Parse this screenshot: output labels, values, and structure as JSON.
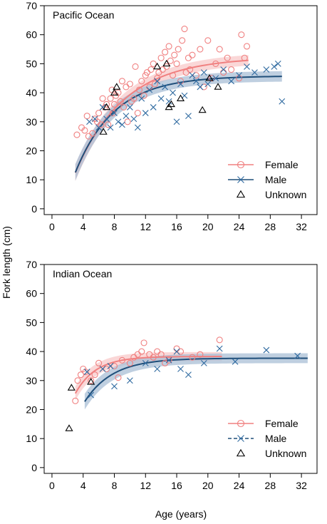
{
  "figure": {
    "ylabel_shared": "Fork length (cm)",
    "xlabel_shared": "Age (years)",
    "colors": {
      "female": "#f08080",
      "male": "#1f4e79",
      "male_marker": "#2f6aa0",
      "female_band": "#f8c9c9",
      "male_band": "#a9bfd6",
      "unknown": "#000000"
    }
  },
  "chart_data": [
    {
      "type": "scatter",
      "title": "Pacific Ocean",
      "xlabel": "",
      "ylabel": "Fork length (cm)",
      "xlim": [
        -1,
        34
      ],
      "ylim": [
        -2,
        70
      ],
      "xticks": [
        0,
        4,
        8,
        12,
        16,
        20,
        24,
        28,
        32
      ],
      "yticks": [
        0,
        10,
        20,
        30,
        40,
        50,
        60,
        70
      ],
      "grid": false,
      "legend_position": "bottom-right",
      "legend": [
        {
          "label": "Female",
          "marker": "circle",
          "line": "solid"
        },
        {
          "label": "Male",
          "marker": "x",
          "line": "solid"
        },
        {
          "label": "Unknown",
          "marker": "triangle",
          "line": "none"
        }
      ],
      "series": [
        {
          "name": "Female",
          "marker": "circle",
          "points": [
            [
              3.2,
              25.5
            ],
            [
              3.8,
              28
            ],
            [
              4.2,
              27
            ],
            [
              4.5,
              32
            ],
            [
              4.7,
              25
            ],
            [
              5.2,
              26
            ],
            [
              5.5,
              31
            ],
            [
              5.8,
              30
            ],
            [
              6,
              33
            ],
            [
              6.3,
              29
            ],
            [
              6.5,
              38
            ],
            [
              6.8,
              35
            ],
            [
              7,
              36
            ],
            [
              7.2,
              29
            ],
            [
              7.5,
              38
            ],
            [
              7.7,
              41
            ],
            [
              7.8,
              33
            ],
            [
              8,
              36
            ],
            [
              8.2,
              39
            ],
            [
              8.5,
              40
            ],
            [
              8.8,
              37
            ],
            [
              9,
              44
            ],
            [
              9.2,
              35
            ],
            [
              9.5,
              42
            ],
            [
              9.7,
              30
            ],
            [
              10,
              43
            ],
            [
              10.2,
              37
            ],
            [
              10.5,
              38
            ],
            [
              10.7,
              49
            ],
            [
              11,
              33
            ],
            [
              11.2,
              41
            ],
            [
              11.5,
              44
            ],
            [
              11.8,
              39
            ],
            [
              12,
              46
            ],
            [
              12.2,
              47
            ],
            [
              12.5,
              42
            ],
            [
              12.7,
              48
            ],
            [
              13,
              50
            ],
            [
              13.2,
              43
            ],
            [
              13.5,
              45
            ],
            [
              13.7,
              47
            ],
            [
              14,
              52
            ],
            [
              14.2,
              48
            ],
            [
              14.5,
              54
            ],
            [
              14.7,
              49
            ],
            [
              15,
              56
            ],
            [
              15.2,
              51
            ],
            [
              15.5,
              46
            ],
            [
              15.7,
              53
            ],
            [
              16,
              50
            ],
            [
              16.2,
              55
            ],
            [
              16.5,
              44
            ],
            [
              16.7,
              58
            ],
            [
              17,
              62
            ],
            [
              17.2,
              47
            ],
            [
              17.5,
              52
            ],
            [
              17.7,
              48
            ],
            [
              18,
              53
            ],
            [
              18.5,
              46
            ],
            [
              19,
              55
            ],
            [
              19.5,
              42
            ],
            [
              20,
              58
            ],
            [
              20.5,
              45
            ],
            [
              21,
              50
            ],
            [
              21.5,
              55
            ],
            [
              22,
              47
            ],
            [
              22.5,
              52
            ],
            [
              23,
              48
            ],
            [
              24,
              45
            ],
            [
              24.3,
              60
            ],
            [
              24.7,
              52
            ],
            [
              25,
              56
            ]
          ]
        },
        {
          "name": "Male",
          "marker": "x",
          "points": [
            [
              4.8,
              30
            ],
            [
              5.5,
              31
            ],
            [
              6,
              28
            ],
            [
              6.5,
              35
            ],
            [
              7,
              31
            ],
            [
              7.5,
              28
            ],
            [
              8,
              33
            ],
            [
              8.5,
              30
            ],
            [
              9,
              29
            ],
            [
              9.5,
              32
            ],
            [
              10,
              35
            ],
            [
              10.5,
              31
            ],
            [
              11,
              28
            ],
            [
              11.5,
              38
            ],
            [
              12,
              33
            ],
            [
              12.5,
              41
            ],
            [
              13,
              35
            ],
            [
              13.5,
              44
            ],
            [
              14,
              38
            ],
            [
              14.5,
              42
            ],
            [
              15,
              37
            ],
            [
              15.5,
              40
            ],
            [
              16,
              30
            ],
            [
              16.5,
              43
            ],
            [
              17,
              39
            ],
            [
              17.5,
              32
            ],
            [
              18,
              46
            ],
            [
              18.5,
              44
            ],
            [
              19,
              42
            ],
            [
              19.5,
              47
            ],
            [
              20,
              43
            ],
            [
              21,
              45
            ],
            [
              22,
              48
            ],
            [
              23,
              44
            ],
            [
              24,
              46
            ],
            [
              25,
              49
            ],
            [
              26,
              47
            ],
            [
              27.5,
              48
            ],
            [
              28.5,
              49
            ],
            [
              29,
              50
            ],
            [
              29.5,
              37
            ]
          ]
        },
        {
          "name": "Unknown",
          "marker": "triangle",
          "points": [
            [
              6.6,
              26.5
            ],
            [
              7,
              35
            ],
            [
              8,
              40
            ],
            [
              8.3,
              42
            ],
            [
              13.5,
              49
            ],
            [
              14.7,
              50
            ],
            [
              15,
              35
            ],
            [
              15.3,
              36
            ],
            [
              16.5,
              38
            ],
            [
              19.3,
              34
            ],
            [
              20.2,
              45
            ],
            [
              21.3,
              42
            ]
          ]
        }
      ],
      "fits": [
        {
          "name": "Female",
          "Linf": 52.3,
          "K": 0.16,
          "t0": 1.3,
          "x_range": [
            3,
            25.2
          ],
          "band_halfwidth": 1.8
        },
        {
          "name": "Male",
          "Linf": 45.8,
          "K": 0.2,
          "t0": 1.4,
          "x_range": [
            3,
            29.5
          ],
          "band_halfwidth": 1.8
        }
      ]
    },
    {
      "type": "scatter",
      "title": "Indian Ocean",
      "xlabel": "Age (years)",
      "ylabel": "",
      "xlim": [
        -1,
        34
      ],
      "ylim": [
        -2,
        70
      ],
      "xticks": [
        0,
        4,
        8,
        12,
        16,
        20,
        24,
        28,
        32
      ],
      "yticks": [
        0,
        10,
        20,
        30,
        40,
        50,
        60,
        70
      ],
      "grid": false,
      "legend_position": "bottom-right",
      "legend": [
        {
          "label": "Female",
          "marker": "circle",
          "line": "solid"
        },
        {
          "label": "Male",
          "marker": "x",
          "line": "dashed"
        },
        {
          "label": "Unknown",
          "marker": "triangle",
          "line": "none"
        }
      ],
      "series": [
        {
          "name": "Female",
          "marker": "circle",
          "points": [
            [
              3,
              23
            ],
            [
              3.3,
              30
            ],
            [
              3.7,
              32
            ],
            [
              4,
              34
            ],
            [
              4.3,
              33
            ],
            [
              5,
              30
            ],
            [
              5.5,
              32
            ],
            [
              6,
              36
            ],
            [
              7,
              34
            ],
            [
              8,
              35
            ],
            [
              8.5,
              31
            ],
            [
              9,
              37
            ],
            [
              10,
              36
            ],
            [
              10.5,
              38
            ],
            [
              11,
              39
            ],
            [
              11.5,
              40
            ],
            [
              11.8,
              43
            ],
            [
              12.5,
              39
            ],
            [
              13,
              38
            ],
            [
              13.5,
              40
            ],
            [
              14,
              39
            ],
            [
              14.5,
              36
            ],
            [
              15,
              37
            ],
            [
              16,
              41
            ],
            [
              16.5,
              40
            ],
            [
              18,
              38
            ],
            [
              19,
              39
            ],
            [
              21.5,
              44
            ]
          ]
        },
        {
          "name": "Male",
          "marker": "x",
          "points": [
            [
              4.5,
              33
            ],
            [
              5,
              25
            ],
            [
              6.5,
              34
            ],
            [
              7.5,
              35
            ],
            [
              8,
              28
            ],
            [
              10,
              30
            ],
            [
              12,
              36
            ],
            [
              13.5,
              34
            ],
            [
              15,
              37
            ],
            [
              16,
              40
            ],
            [
              16.5,
              34
            ],
            [
              17.5,
              32
            ],
            [
              19.5,
              36
            ],
            [
              21.5,
              41
            ],
            [
              23.5,
              36.5
            ],
            [
              27.5,
              40.5
            ],
            [
              31.5,
              38.5
            ]
          ]
        },
        {
          "name": "Unknown",
          "marker": "triangle",
          "points": [
            [
              2.2,
              13.5
            ],
            [
              2.5,
              27.5
            ],
            [
              5,
              29.5
            ]
          ]
        }
      ],
      "fits": [
        {
          "name": "Female",
          "Linf": 38.3,
          "K": 0.38,
          "t0": 0.1,
          "x_range": [
            3,
            21.8
          ],
          "band_halfwidth": 1.5
        },
        {
          "name": "Male",
          "Linf": 37.7,
          "K": 0.28,
          "t0": 0.9,
          "x_range": [
            4.2,
            32.8
          ],
          "band_halfwidth": 1.7
        }
      ]
    }
  ]
}
